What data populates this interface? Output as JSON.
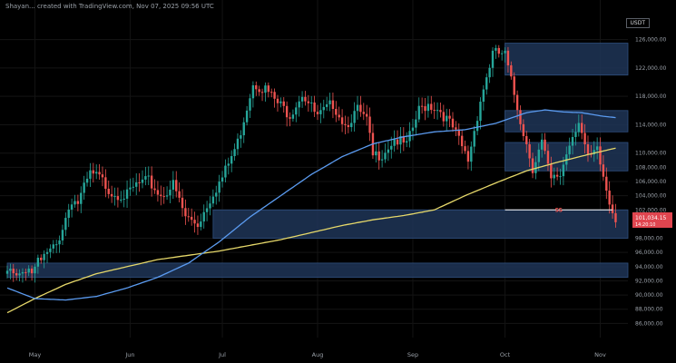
{
  "header": {
    "text": "Shayan... created with TradingView.com, Nov 07, 2025 09:56 UTC"
  },
  "pair_label": "USDT",
  "price_label": {
    "value": "101,034.15",
    "sub": "14:20:10",
    "color": "#e0454f"
  },
  "colors": {
    "background": "#000000",
    "up_candle": "#26a69a",
    "down_candle": "#ef5350",
    "ma_fast": "#5b9bf0",
    "ma_slow": "#e6d86a",
    "zone_fill": "#1f3557",
    "zone_stroke": "#2f4f7f",
    "grid": "#141414",
    "axis_text": "#9aa0a8"
  },
  "chart_data": {
    "type": "candlestick",
    "title": "",
    "xlabel": "",
    "ylabel": "",
    "ylim": [
      84000,
      128000
    ],
    "grid": true,
    "y_ticks": [
      "126,000.00",
      "122,000.00",
      "118,000.00",
      "114,000.00",
      "110,000.00",
      "108,000.00",
      "106,000.00",
      "104,000.00",
      "102,000.00",
      "98,000.00",
      "96,000.00",
      "94,000.00",
      "92,000.00",
      "90,000.00",
      "88,000.00",
      "86,000.00"
    ],
    "y_tick_values": [
      126000,
      122000,
      118000,
      114000,
      110000,
      108000,
      106000,
      104000,
      102000,
      98000,
      96000,
      94000,
      92000,
      90000,
      88000,
      86000
    ],
    "x_ticks": [
      "May",
      "Jun",
      "Jul",
      "Aug",
      "Sep",
      "Oct",
      "Nov"
    ],
    "x_tick_days": [
      0,
      31,
      61,
      92,
      123,
      153,
      184
    ],
    "x_range_days": [
      -9,
      193
    ],
    "close_anchor_days": [
      -9,
      0,
      7,
      12,
      14,
      18,
      21,
      25,
      30,
      33,
      37,
      41,
      45,
      49,
      53,
      58,
      61,
      66,
      71,
      75,
      79,
      83,
      87,
      92,
      97,
      101,
      105,
      108,
      110,
      113,
      117,
      121,
      125,
      128,
      132,
      136,
      141,
      145,
      149,
      152,
      153,
      155,
      159,
      162,
      165,
      168,
      171,
      174,
      177,
      180,
      183,
      187,
      189
    ],
    "close_anchor_values": [
      93000,
      94000,
      97000,
      103500,
      103000,
      107000,
      106500,
      104500,
      104000,
      105500,
      106000,
      104000,
      105500,
      101000,
      100000,
      104500,
      106500,
      111500,
      120000,
      119000,
      117000,
      115500,
      118500,
      115000,
      117000,
      114000,
      116000,
      114500,
      109500,
      110000,
      112000,
      111000,
      116000,
      117000,
      116000,
      113500,
      109000,
      117500,
      124000,
      124000,
      123800,
      120000,
      113000,
      108000,
      111500,
      106000,
      107000,
      111500,
      114800,
      109000,
      110200,
      103000,
      101034
    ],
    "zones": [
      {
        "low": 121000,
        "high": 125500,
        "from_day": 153,
        "to_day": 193
      },
      {
        "low": 113000,
        "high": 116000,
        "from_day": 153,
        "to_day": 193
      },
      {
        "low": 107500,
        "high": 111500,
        "from_day": 153,
        "to_day": 193
      },
      {
        "low": 98000,
        "high": 102000,
        "from_day": 58,
        "to_day": 193
      },
      {
        "low": 92500,
        "high": 94500,
        "from_day": -9,
        "to_day": 193
      }
    ],
    "ma_fast": {
      "days": [
        -9,
        0,
        10,
        20,
        30,
        40,
        50,
        60,
        70,
        80,
        90,
        100,
        110,
        120,
        130,
        140,
        150,
        160,
        166,
        172,
        178,
        182,
        185,
        189
      ],
      "values": [
        91000,
        89500,
        89300,
        89800,
        91000,
        92500,
        94500,
        97500,
        101000,
        104000,
        107000,
        109500,
        111300,
        112300,
        113000,
        113300,
        114200,
        115700,
        116100,
        115800,
        115700,
        115400,
        115200,
        115000
      ]
    },
    "ma_slow": {
      "days": [
        -9,
        0,
        10,
        20,
        30,
        40,
        50,
        60,
        70,
        80,
        90,
        100,
        110,
        120,
        130,
        140,
        150,
        160,
        170,
        180,
        185,
        189
      ],
      "values": [
        87500,
        89500,
        91500,
        93000,
        94000,
        95000,
        95600,
        96200,
        97000,
        97800,
        98800,
        99800,
        100600,
        101200,
        102000,
        104000,
        105800,
        107500,
        108700,
        109800,
        110300,
        110700
      ]
    },
    "support_line": {
      "value": 102000,
      "from_day": 153,
      "to_day": 188,
      "label": "SS"
    }
  }
}
